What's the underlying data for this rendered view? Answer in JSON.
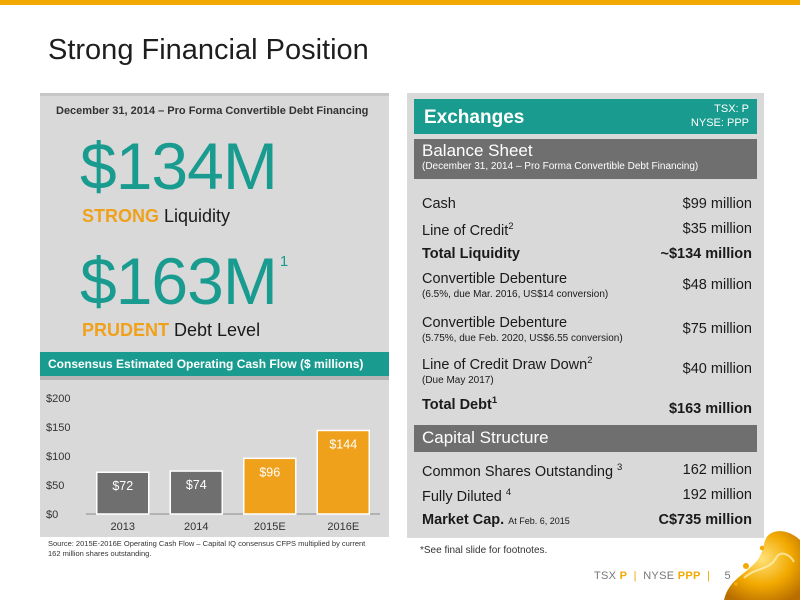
{
  "slide": {
    "title": "Strong Financial Position",
    "page_number": "5",
    "footer": {
      "ticker_tsx_label": "TSX",
      "ticker_tsx": "P",
      "ticker_nyse_label": "NYSE",
      "ticker_nyse": "PPP"
    },
    "accent_color": "#f2a900",
    "teal_color": "#199c8f"
  },
  "liquidity": {
    "header": "December 31, 2014 – Pro Forma Convertible Debt Financing",
    "amount1": "$134M",
    "tag1_accent": "STRONG",
    "tag1_text": " Liquidity",
    "amount2": "$163M",
    "amount2_note": "1",
    "tag2_accent": "PRUDENT",
    "tag2_text": " Debt Level"
  },
  "chart_section": {
    "header": "Consensus Estimated Operating Cash Flow ($ millions)",
    "source": "Source:  2015E-2016E Operating Cash Flow – Capital IQ consensus CFPS multiplied by current 162 million shares outstanding."
  },
  "chart_data": {
    "type": "bar",
    "categories": [
      "2013",
      "2014",
      "2015E",
      "2016E"
    ],
    "values": [
      72,
      74,
      96,
      144
    ],
    "value_labels": [
      "$72",
      "$74",
      "$96",
      "$144"
    ],
    "bar_colors": [
      "#6f6f6f",
      "#6f6f6f",
      "#f0a11c",
      "#f0a11c"
    ],
    "ylim": [
      0,
      200
    ],
    "yticks": [
      0,
      50,
      100,
      150,
      200
    ],
    "ytick_labels": [
      "$0",
      "$50",
      "$100",
      "$150",
      "$200"
    ],
    "title": "Consensus Estimated Operating Cash Flow ($ millions)",
    "xlabel": "",
    "ylabel": "",
    "grid": false
  },
  "exchanges": {
    "title": "Exchanges",
    "tsx": "TSX: P",
    "nyse": "NYSE: PPP"
  },
  "balance_sheet": {
    "title": "Balance Sheet",
    "subtitle": "(December 31, 2014 – Pro Forma Convertible Debt Financing)",
    "rows": [
      {
        "label": "Cash",
        "value": "$99 million"
      },
      {
        "label": "Line of Credit",
        "sup": "2",
        "value": "$35 million"
      },
      {
        "label": "Total Liquidity",
        "value": "~$134 million"
      },
      {
        "label": "Convertible Debenture",
        "sub": "(6.5%, due Mar. 2016, US$14 conversion)",
        "value": "$48 million"
      },
      {
        "label": "Convertible Debenture",
        "sub": "(5.75%, due Feb. 2020, US$6.55 conversion)",
        "value": "$75 million"
      },
      {
        "label": "Line of Credit Draw Down",
        "sup": "2",
        "sub": "(Due May 2017)",
        "value": "$40 million"
      },
      {
        "label": "Total Debt",
        "sup": "1",
        "value": "$163 million"
      }
    ]
  },
  "capital_structure": {
    "title": "Capital Structure",
    "rows": [
      {
        "label": "Common Shares Outstanding",
        "sup": "3",
        "value": "162 million"
      },
      {
        "label": "Fully Diluted",
        "sup": "4",
        "value": "192 million"
      },
      {
        "label": "Market Cap.",
        "note": "At Feb. 6, 2015",
        "value": "C$735 million"
      }
    ]
  },
  "footnote": "*See final slide for footnotes."
}
